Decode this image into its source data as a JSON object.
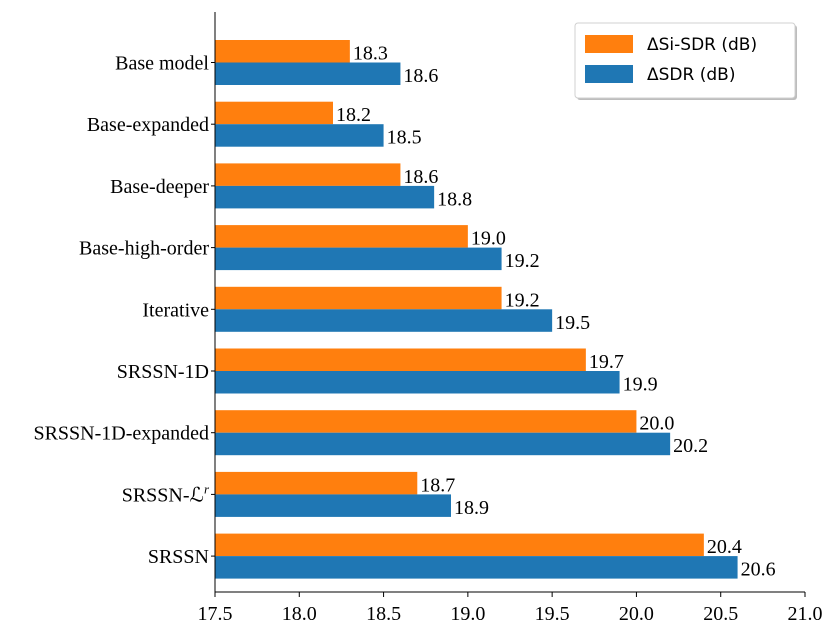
{
  "chart_data": {
    "type": "bar",
    "orientation": "horizontal",
    "categories": [
      "Base model",
      "Base-expanded",
      "Base-deeper",
      "Base-high-order",
      "Iterative",
      "SRSSN-1D",
      "SRSSN-1D-expanded",
      "SRSSN-ℒ",
      "SRSSN"
    ],
    "category_superscript": {
      "SRSSN-ℒ": "r"
    },
    "series": [
      {
        "name": "ΔSi-SDR (dB)",
        "color": "#ff7f0e",
        "values": [
          18.3,
          18.2,
          18.6,
          19.0,
          19.2,
          19.7,
          20.0,
          18.7,
          20.4
        ],
        "labels": [
          "18.3",
          "18.2",
          "18.6",
          "19.0",
          "19.2",
          "19.7",
          "20.0",
          "18.7",
          "20.4"
        ]
      },
      {
        "name": "ΔSDR (dB)",
        "color": "#1f77b4",
        "values": [
          18.6,
          18.5,
          18.8,
          19.2,
          19.5,
          19.9,
          20.2,
          18.9,
          20.6
        ],
        "labels": [
          "18.6",
          "18.5",
          "18.8",
          "19.2",
          "19.5",
          "19.9",
          "20.2",
          "18.9",
          "20.6"
        ]
      }
    ],
    "xlim": [
      17.5,
      21.0
    ],
    "xticks": [
      "17.5",
      "18.0",
      "18.5",
      "19.0",
      "19.5",
      "20.0",
      "20.5",
      "21.0"
    ],
    "legend_position": "top-right",
    "grid": false,
    "title": "",
    "xlabel": "",
    "ylabel": ""
  }
}
